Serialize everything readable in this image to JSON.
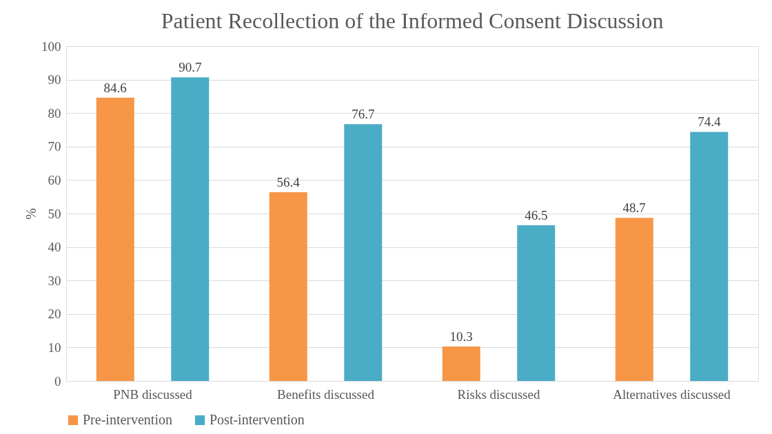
{
  "chart_data": {
    "type": "bar",
    "title": "Patient Recollection of the Informed Consent Discussion",
    "ylabel": "%",
    "categories": [
      "PNB discussed",
      "Benefits discussed",
      "Risks discussed",
      "Alternatives discussed"
    ],
    "series": [
      {
        "name": "Pre-intervention",
        "color": "#f79646",
        "values": [
          84.6,
          56.4,
          10.3,
          48.7
        ]
      },
      {
        "name": "Post-intervention",
        "color": "#4bacc6",
        "values": [
          90.7,
          76.7,
          46.5,
          74.4
        ]
      }
    ],
    "ylim": [
      0,
      100
    ],
    "yticks": [
      0,
      10,
      20,
      30,
      40,
      50,
      60,
      70,
      80,
      90,
      100
    ],
    "grid": "y",
    "legend": "bottom",
    "data_labels": true
  }
}
